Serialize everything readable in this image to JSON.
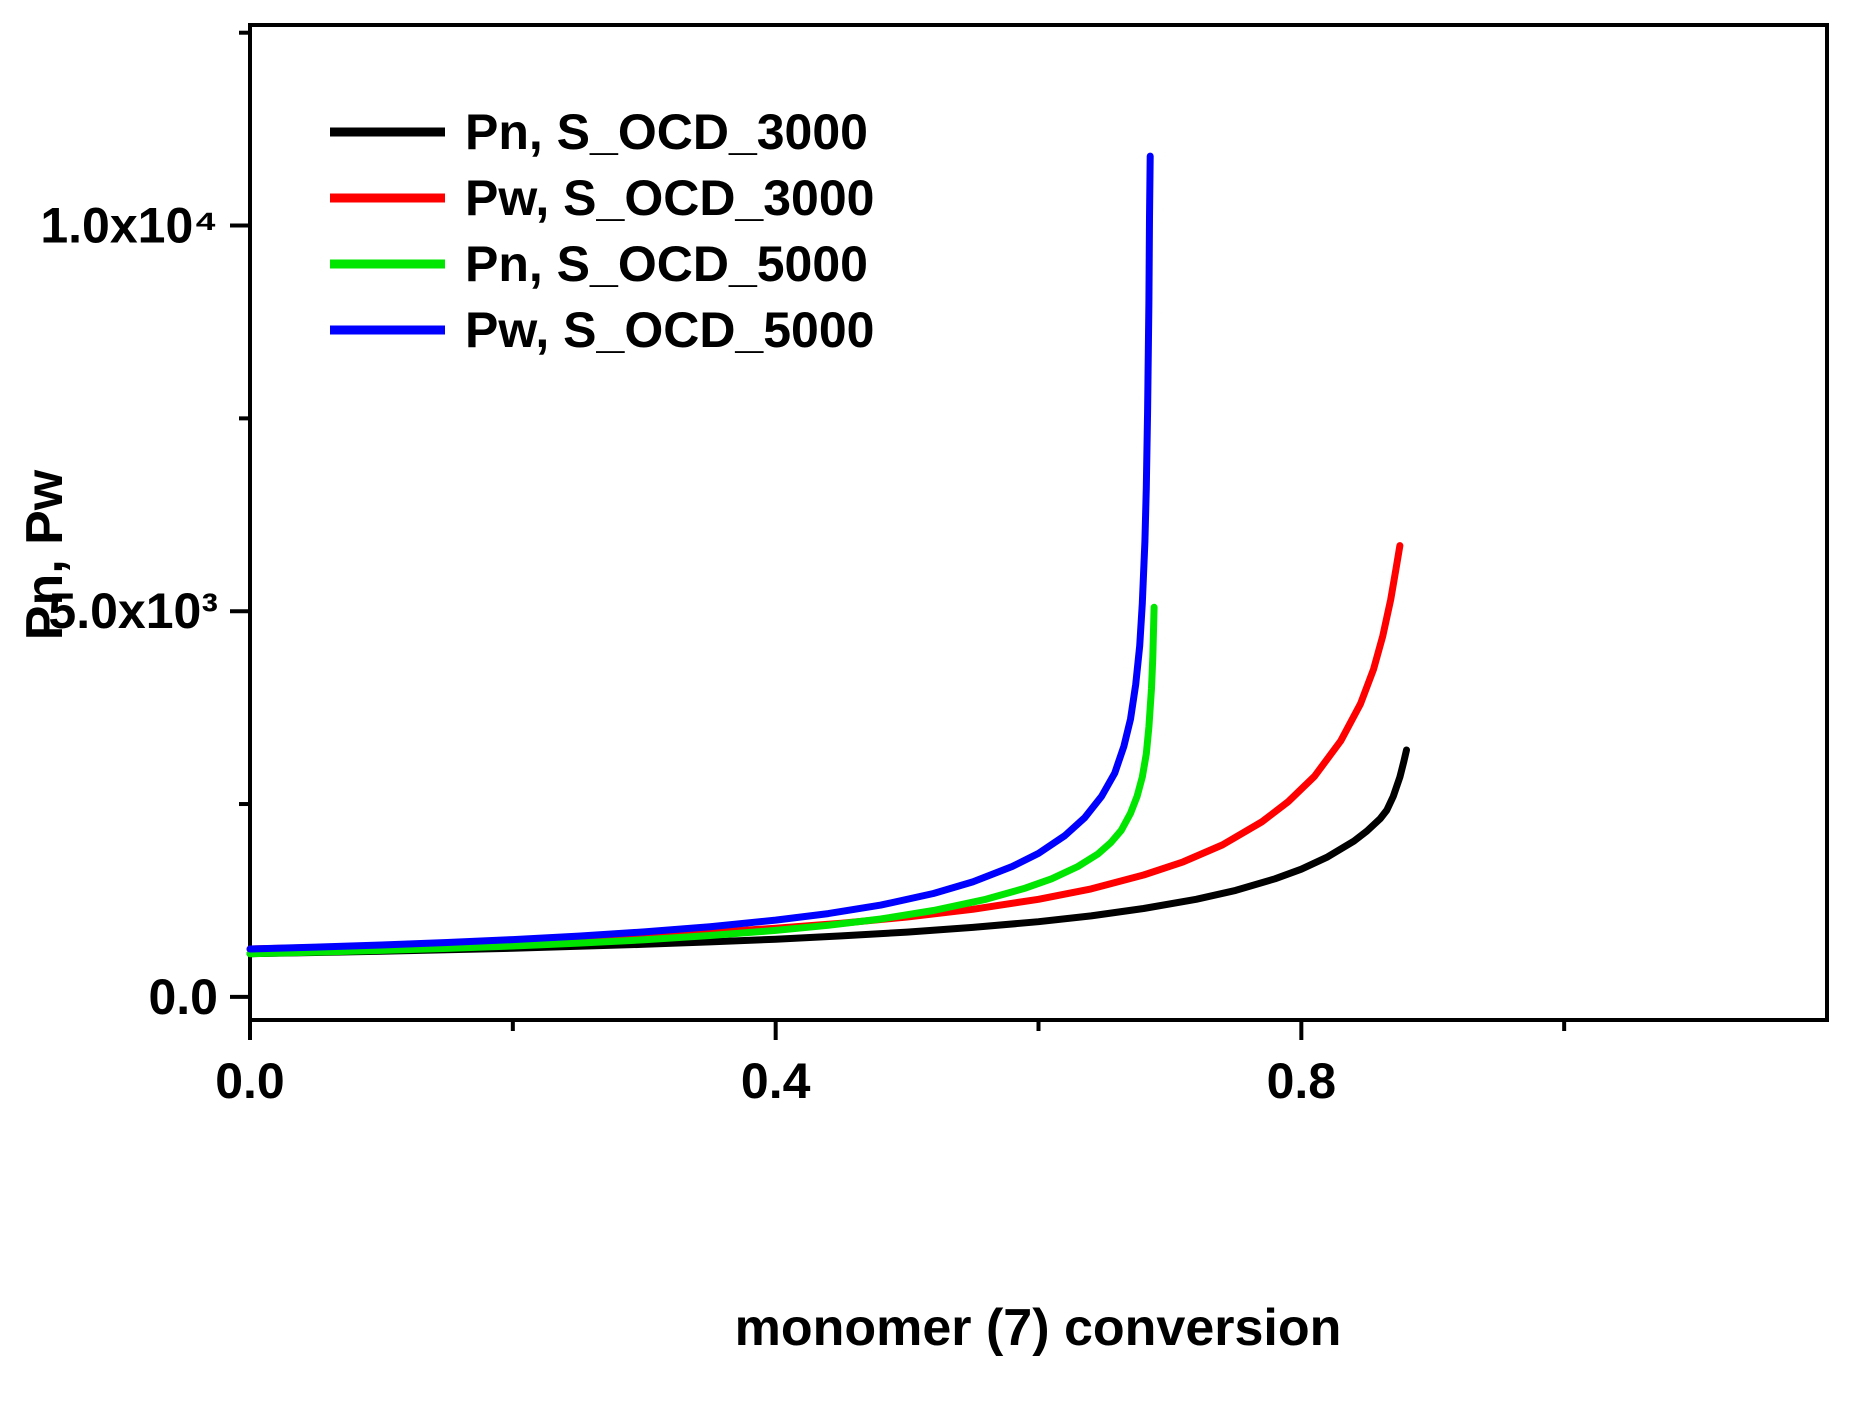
{
  "figure": {
    "background": "#ffffff",
    "frame_color": "#000000"
  },
  "chart_data": {
    "type": "line",
    "title": "",
    "xlabel": "monomer (7) conversion",
    "ylabel": "Pn, Pw",
    "xlim": [
      0.0,
      1.2
    ],
    "ylim": [
      -300,
      12600
    ],
    "grid": false,
    "legend_position": "top-left",
    "x_ticks": [
      {
        "value": 0.0,
        "label": "0.0"
      },
      {
        "value": 0.4,
        "label": "0.4"
      },
      {
        "value": 0.8,
        "label": "0.8"
      }
    ],
    "x_minor_ticks": [
      0.2,
      0.6,
      1.0
    ],
    "y_ticks": [
      {
        "value": 0,
        "label": "0.0"
      },
      {
        "value": 5000,
        "label": "5.0x10³"
      },
      {
        "value": 10000,
        "label": "1.0x10⁴"
      }
    ],
    "y_minor_ticks": [
      2500,
      7500,
      12500
    ],
    "series": [
      {
        "name": "Pn, S_OCD_3000",
        "color": "#000000",
        "points": [
          [
            0.0,
            560
          ],
          [
            0.05,
            575
          ],
          [
            0.1,
            592
          ],
          [
            0.15,
            610
          ],
          [
            0.2,
            630
          ],
          [
            0.25,
            655
          ],
          [
            0.3,
            682
          ],
          [
            0.35,
            712
          ],
          [
            0.4,
            748
          ],
          [
            0.45,
            790
          ],
          [
            0.5,
            840
          ],
          [
            0.55,
            900
          ],
          [
            0.6,
            975
          ],
          [
            0.64,
            1050
          ],
          [
            0.68,
            1145
          ],
          [
            0.72,
            1265
          ],
          [
            0.75,
            1380
          ],
          [
            0.78,
            1530
          ],
          [
            0.8,
            1655
          ],
          [
            0.82,
            1815
          ],
          [
            0.84,
            2020
          ],
          [
            0.85,
            2150
          ],
          [
            0.86,
            2310
          ],
          [
            0.865,
            2420
          ],
          [
            0.87,
            2600
          ],
          [
            0.875,
            2850
          ],
          [
            0.878,
            3050
          ],
          [
            0.88,
            3200
          ]
        ]
      },
      {
        "name": "Pw, S_OCD_3000",
        "color": "#ff0000",
        "points": [
          [
            0.0,
            620
          ],
          [
            0.05,
            640
          ],
          [
            0.1,
            662
          ],
          [
            0.15,
            688
          ],
          [
            0.2,
            718
          ],
          [
            0.25,
            752
          ],
          [
            0.3,
            790
          ],
          [
            0.35,
            836
          ],
          [
            0.4,
            890
          ],
          [
            0.45,
            955
          ],
          [
            0.5,
            1035
          ],
          [
            0.55,
            1135
          ],
          [
            0.6,
            1265
          ],
          [
            0.64,
            1400
          ],
          [
            0.68,
            1580
          ],
          [
            0.71,
            1750
          ],
          [
            0.74,
            1970
          ],
          [
            0.77,
            2270
          ],
          [
            0.79,
            2530
          ],
          [
            0.81,
            2860
          ],
          [
            0.83,
            3320
          ],
          [
            0.845,
            3800
          ],
          [
            0.855,
            4250
          ],
          [
            0.862,
            4680
          ],
          [
            0.868,
            5150
          ],
          [
            0.872,
            5550
          ],
          [
            0.875,
            5850
          ]
        ]
      },
      {
        "name": "Pn, S_OCD_5000",
        "color": "#00e600",
        "points": [
          [
            0.0,
            560
          ],
          [
            0.05,
            580
          ],
          [
            0.1,
            602
          ],
          [
            0.15,
            628
          ],
          [
            0.2,
            660
          ],
          [
            0.25,
            697
          ],
          [
            0.3,
            740
          ],
          [
            0.35,
            795
          ],
          [
            0.4,
            862
          ],
          [
            0.44,
            928
          ],
          [
            0.48,
            1010
          ],
          [
            0.52,
            1120
          ],
          [
            0.56,
            1265
          ],
          [
            0.59,
            1410
          ],
          [
            0.61,
            1530
          ],
          [
            0.63,
            1690
          ],
          [
            0.645,
            1850
          ],
          [
            0.655,
            2000
          ],
          [
            0.663,
            2160
          ],
          [
            0.67,
            2380
          ],
          [
            0.675,
            2600
          ],
          [
            0.679,
            2850
          ],
          [
            0.682,
            3150
          ],
          [
            0.684,
            3500
          ],
          [
            0.686,
            4000
          ],
          [
            0.687,
            4400
          ],
          [
            0.688,
            5050
          ]
        ]
      },
      {
        "name": "Pw, S_OCD_5000",
        "color": "#0000ff",
        "points": [
          [
            0.0,
            620
          ],
          [
            0.05,
            645
          ],
          [
            0.1,
            673
          ],
          [
            0.15,
            705
          ],
          [
            0.2,
            743
          ],
          [
            0.25,
            788
          ],
          [
            0.3,
            842
          ],
          [
            0.35,
            910
          ],
          [
            0.4,
            995
          ],
          [
            0.44,
            1080
          ],
          [
            0.48,
            1190
          ],
          [
            0.52,
            1340
          ],
          [
            0.55,
            1490
          ],
          [
            0.58,
            1690
          ],
          [
            0.6,
            1860
          ],
          [
            0.62,
            2090
          ],
          [
            0.635,
            2320
          ],
          [
            0.648,
            2600
          ],
          [
            0.658,
            2900
          ],
          [
            0.665,
            3250
          ],
          [
            0.67,
            3600
          ],
          [
            0.674,
            4050
          ],
          [
            0.677,
            4550
          ],
          [
            0.679,
            5100
          ],
          [
            0.681,
            5900
          ],
          [
            0.682,
            6600
          ],
          [
            0.683,
            7600
          ],
          [
            0.684,
            9000
          ],
          [
            0.6845,
            10100
          ],
          [
            0.685,
            10900
          ]
        ]
      }
    ]
  }
}
